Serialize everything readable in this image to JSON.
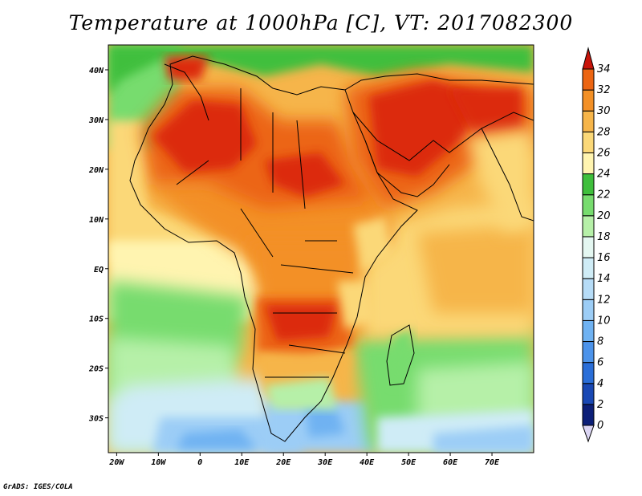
{
  "title": "Temperature at 1000hPa [C], VT: 2017082300",
  "credit": "GrADS: IGES/COLA",
  "map": {
    "lon_range": [
      -22,
      80
    ],
    "lat_range": [
      -37,
      45
    ],
    "x_ticks": [
      {
        "value": -20,
        "label": "20W"
      },
      {
        "value": -10,
        "label": "10W"
      },
      {
        "value": 0,
        "label": "0"
      },
      {
        "value": 10,
        "label": "10E"
      },
      {
        "value": 20,
        "label": "20E"
      },
      {
        "value": 30,
        "label": "30E"
      },
      {
        "value": 40,
        "label": "40E"
      },
      {
        "value": 50,
        "label": "50E"
      },
      {
        "value": 60,
        "label": "60E"
      },
      {
        "value": 70,
        "label": "70E"
      }
    ],
    "y_ticks": [
      {
        "value": 40,
        "label": "40N"
      },
      {
        "value": 30,
        "label": "30N"
      },
      {
        "value": 20,
        "label": "20N"
      },
      {
        "value": 10,
        "label": "10N"
      },
      {
        "value": 0,
        "label": "EQ"
      },
      {
        "value": -10,
        "label": "10S"
      },
      {
        "value": -20,
        "label": "20S"
      },
      {
        "value": -30,
        "label": "30S"
      }
    ]
  },
  "colorbar": {
    "levels": [
      {
        "label": "0",
        "color": "#0c1f78"
      },
      {
        "label": "2",
        "color": "#1948b4"
      },
      {
        "label": "4",
        "color": "#2a6ed8"
      },
      {
        "label": "6",
        "color": "#4c93ea"
      },
      {
        "label": "8",
        "color": "#6fb2f2"
      },
      {
        "label": "10",
        "color": "#9ccdf6"
      },
      {
        "label": "12",
        "color": "#b6dcf7"
      },
      {
        "label": "14",
        "color": "#cfecf6"
      },
      {
        "label": "16",
        "color": "#e4f7f1"
      },
      {
        "label": "18",
        "color": "#b6f0a8"
      },
      {
        "label": "20",
        "color": "#77dc6e"
      },
      {
        "label": "22",
        "color": "#3fbf3c"
      },
      {
        "label": "24",
        "color": "#fff4b0"
      },
      {
        "label": "26",
        "color": "#fbd878"
      },
      {
        "label": "28",
        "color": "#f6b54a"
      },
      {
        "label": "30",
        "color": "#f39026"
      },
      {
        "label": "32",
        "color": "#ec6512"
      },
      {
        "label": "34",
        "color": "#dc2c08"
      }
    ],
    "under_color": "#dcd6f4",
    "over_color": "#c8140a"
  }
}
